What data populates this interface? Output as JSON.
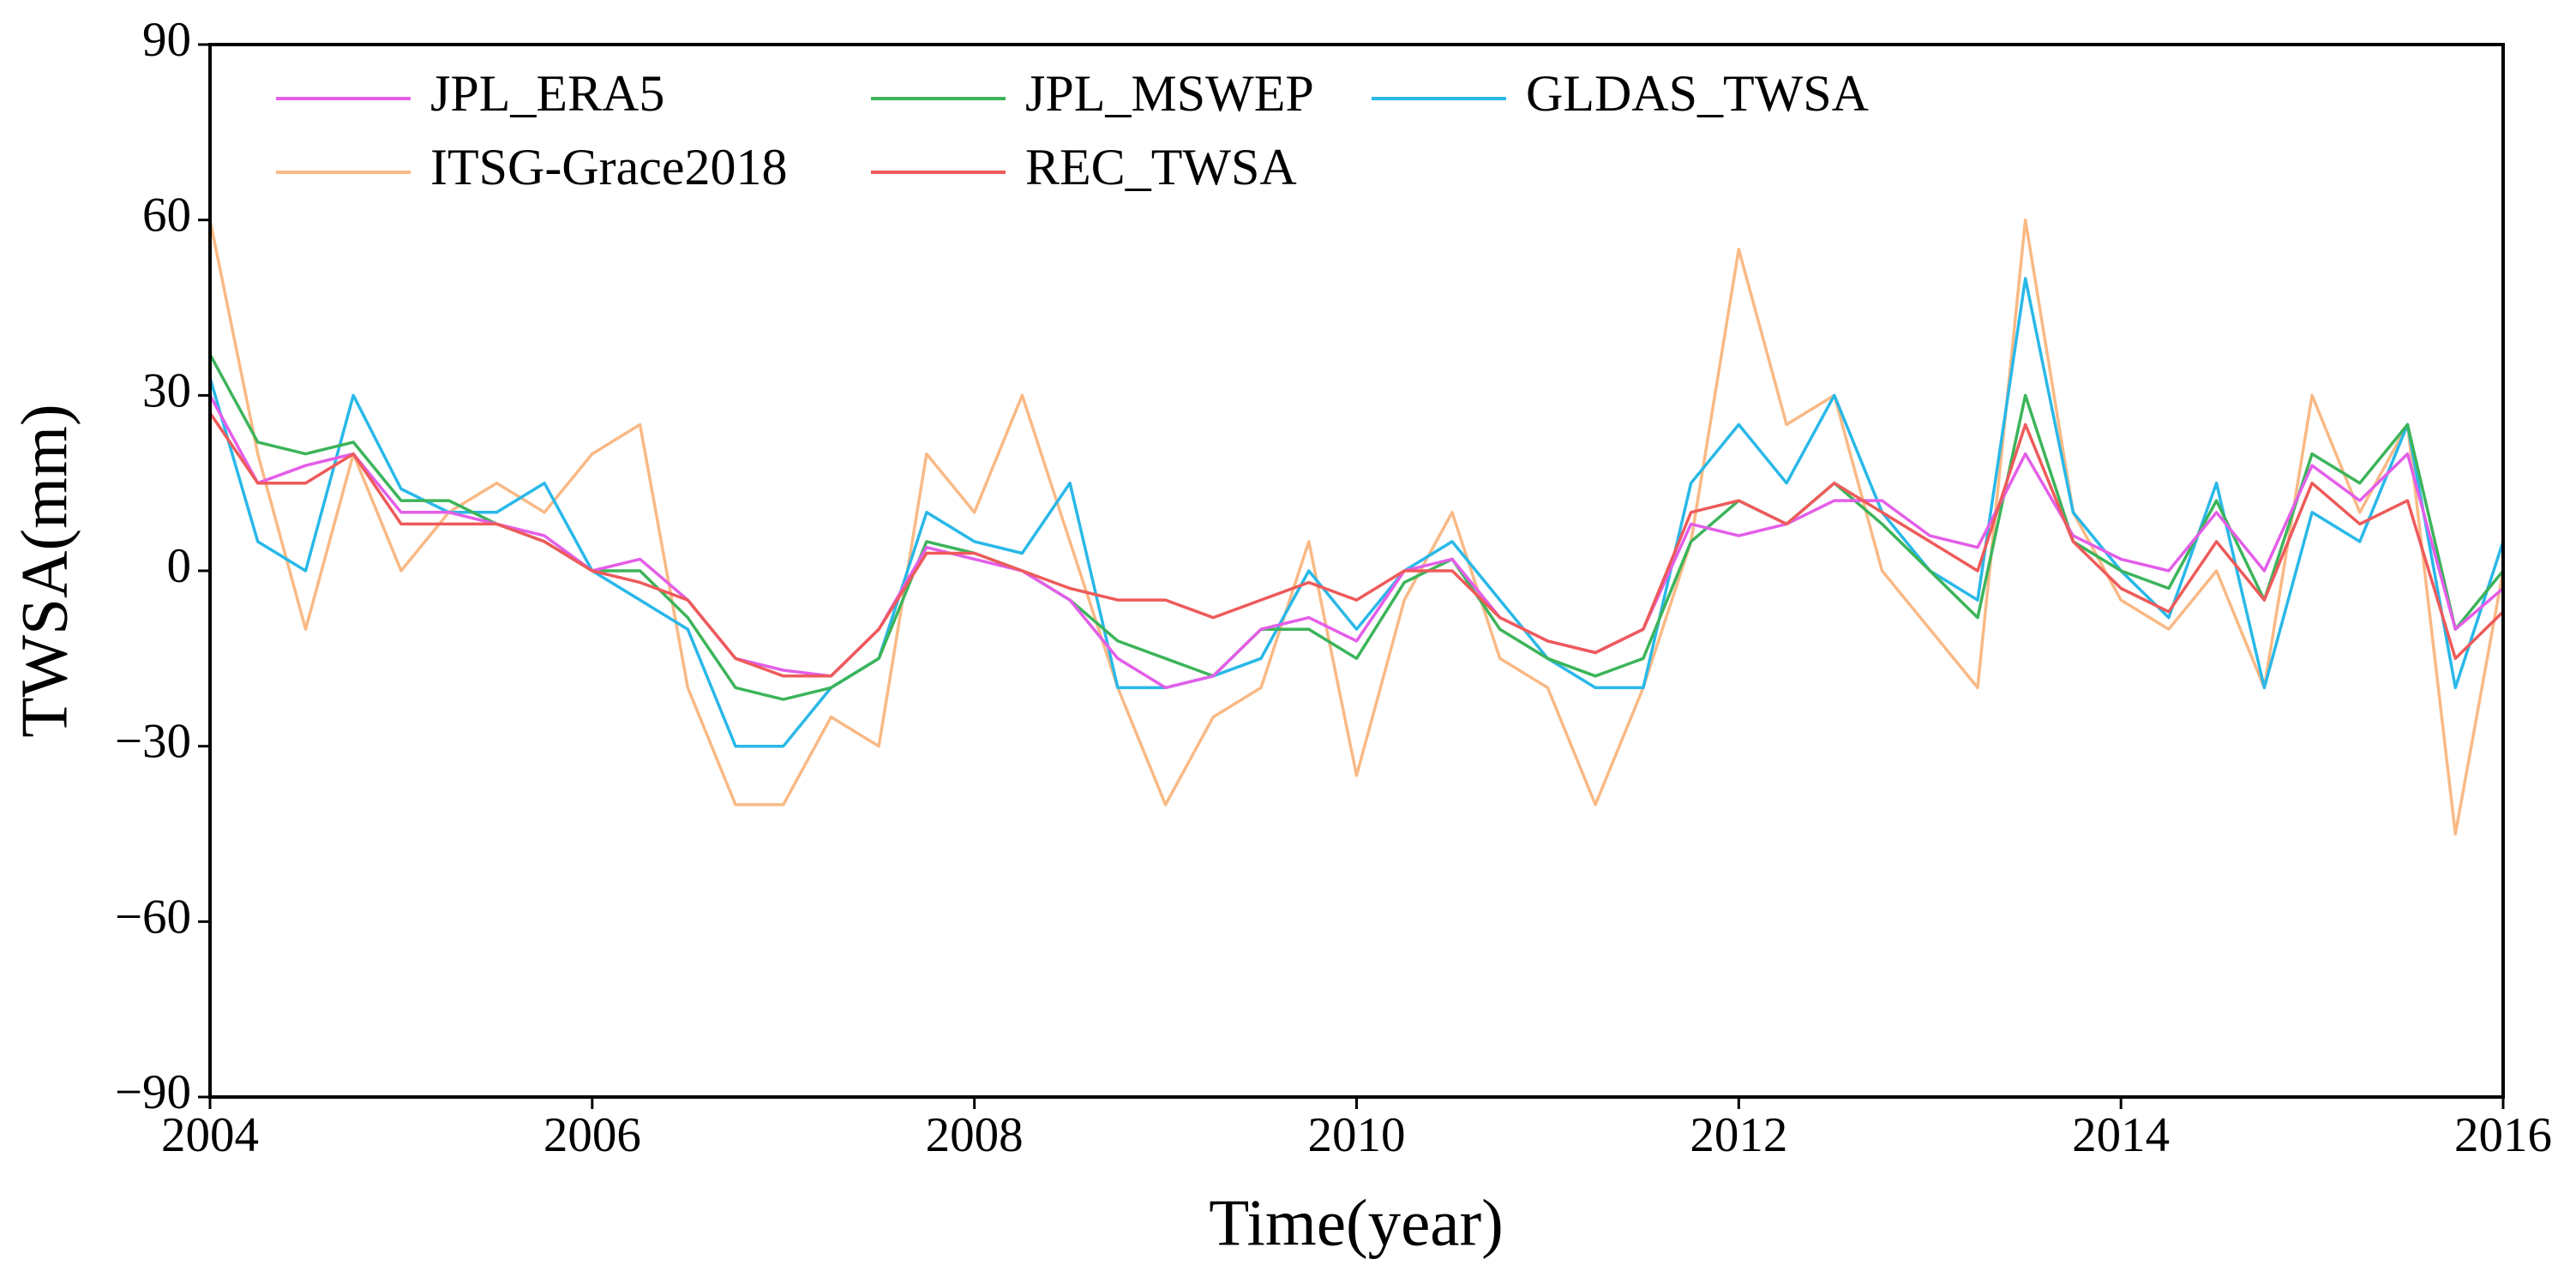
{
  "chart_data": {
    "type": "line",
    "xlabel": "Time(year)",
    "ylabel": "TWSA(mm)",
    "x": [
      2004,
      2004.25,
      2004.5,
      2004.75,
      2005,
      2005.25,
      2005.5,
      2005.75,
      2006,
      2006.25,
      2006.5,
      2006.75,
      2007,
      2007.25,
      2007.5,
      2007.75,
      2008,
      2008.25,
      2008.5,
      2008.75,
      2009,
      2009.25,
      2009.5,
      2009.75,
      2010,
      2010.25,
      2010.5,
      2010.75,
      2011,
      2011.25,
      2011.5,
      2011.75,
      2012,
      2012.25,
      2012.5,
      2012.75,
      2013,
      2013.25,
      2013.5,
      2013.75,
      2014,
      2014.25,
      2014.5,
      2014.75,
      2015,
      2015.25,
      2015.5,
      2015.75,
      2016
    ],
    "series": [
      {
        "name": "JPL_ERA5",
        "color": "#e35ee8",
        "values": [
          30,
          15,
          18,
          20,
          10,
          10,
          8,
          6,
          0,
          2,
          -5,
          -15,
          -17,
          -18,
          -10,
          4,
          2,
          0,
          -5,
          -15,
          -20,
          -18,
          -10,
          -8,
          -12,
          0,
          2,
          -8,
          -12,
          -14,
          -10,
          8,
          6,
          8,
          12,
          12,
          6,
          4,
          20,
          6,
          2,
          0,
          10,
          0,
          18,
          12,
          20,
          -10,
          -3
        ]
      },
      {
        "name": "JPL_MSWEP",
        "color": "#3cb45a",
        "values": [
          37,
          22,
          20,
          22,
          12,
          12,
          8,
          5,
          0,
          0,
          -8,
          -20,
          -22,
          -20,
          -15,
          5,
          3,
          0,
          -5,
          -12,
          -15,
          -18,
          -10,
          -10,
          -15,
          -2,
          2,
          -10,
          -15,
          -18,
          -15,
          5,
          12,
          8,
          15,
          8,
          0,
          -8,
          30,
          5,
          0,
          -3,
          12,
          -5,
          20,
          15,
          25,
          -10,
          0
        ]
      },
      {
        "name": "GLDAS_TWSA",
        "color": "#29b8e8",
        "values": [
          33,
          5,
          0,
          30,
          14,
          10,
          10,
          15,
          0,
          -5,
          -10,
          -30,
          -30,
          -20,
          -15,
          10,
          5,
          3,
          15,
          -20,
          -20,
          -18,
          -15,
          0,
          -10,
          0,
          5,
          -5,
          -15,
          -20,
          -20,
          15,
          25,
          15,
          30,
          10,
          0,
          -5,
          50,
          10,
          0,
          -8,
          15,
          -20,
          10,
          5,
          25,
          -20,
          5
        ]
      },
      {
        "name": "ITSG-Grace2018",
        "color": "#f9b985",
        "values": [
          60,
          20,
          -10,
          20,
          0,
          10,
          15,
          10,
          20,
          25,
          -20,
          -40,
          -40,
          -25,
          -30,
          20,
          10,
          30,
          5,
          -20,
          -40,
          -25,
          -20,
          5,
          -35,
          -5,
          10,
          -15,
          -20,
          -40,
          -20,
          5,
          55,
          25,
          30,
          0,
          -10,
          -20,
          60,
          10,
          -5,
          -10,
          0,
          -20,
          30,
          10,
          25,
          -45,
          0
        ]
      },
      {
        "name": "REC_TWSA",
        "color": "#ee5a5a",
        "values": [
          27,
          15,
          15,
          20,
          8,
          8,
          8,
          5,
          0,
          -2,
          -5,
          -15,
          -18,
          -18,
          -10,
          3,
          3,
          0,
          -3,
          -5,
          -5,
          -8,
          -5,
          -2,
          -5,
          0,
          0,
          -8,
          -12,
          -14,
          -10,
          10,
          12,
          8,
          15,
          10,
          5,
          0,
          25,
          5,
          -3,
          -7,
          5,
          -5,
          15,
          8,
          12,
          -15,
          -7
        ]
      }
    ],
    "xlim": [
      2004,
      2016
    ],
    "xticks": [
      2004,
      2006,
      2008,
      2010,
      2012,
      2014,
      2016
    ],
    "ylim": [
      -90,
      90
    ],
    "yticks": [
      {
        "value": -90,
        "label": "−90"
      },
      {
        "value": -60,
        "label": "−60"
      },
      {
        "value": -30,
        "label": "−30"
      },
      0,
      30,
      60,
      90
    ],
    "legend": "upper left",
    "grid": false
  }
}
